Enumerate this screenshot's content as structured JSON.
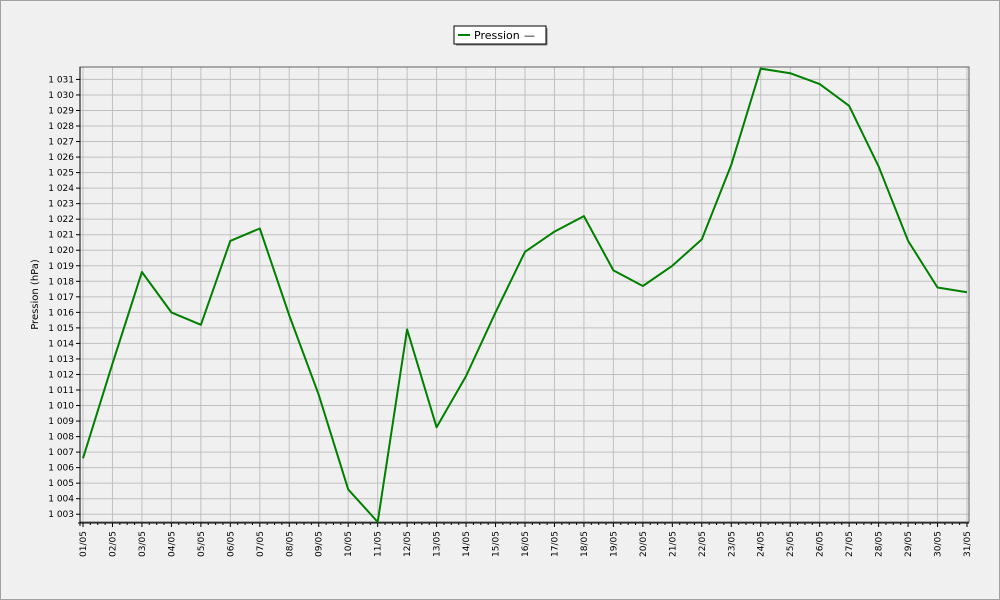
{
  "chart_data": {
    "type": "line",
    "title": "",
    "xlabel": "",
    "ylabel": "Pression (hPa)",
    "ylim": [
      1002.5,
      1031.8
    ],
    "y_ticks": [
      1003,
      1004,
      1005,
      1006,
      1007,
      1008,
      1009,
      1010,
      1011,
      1012,
      1013,
      1014,
      1015,
      1016,
      1017,
      1018,
      1019,
      1020,
      1021,
      1022,
      1023,
      1024,
      1025,
      1026,
      1027,
      1028,
      1029,
      1030,
      1031
    ],
    "y_tick_labels": [
      "1 003",
      "1 004",
      "1 005",
      "1 006",
      "1 007",
      "1 008",
      "1 009",
      "1 010",
      "1 011",
      "1 012",
      "1 013",
      "1 014",
      "1 015",
      "1 016",
      "1 017",
      "1 018",
      "1 019",
      "1 020",
      "1 021",
      "1 022",
      "1 023",
      "1 024",
      "1 025",
      "1 026",
      "1 027",
      "1 028",
      "1 029",
      "1 030",
      "1 031"
    ],
    "categories": [
      "01/05",
      "02/05",
      "03/05",
      "04/05",
      "05/05",
      "06/05",
      "07/05",
      "08/05",
      "09/05",
      "10/05",
      "11/05",
      "12/05",
      "13/05",
      "14/05",
      "15/05",
      "16/05",
      "17/05",
      "18/05",
      "19/05",
      "20/05",
      "21/05",
      "22/05",
      "23/05",
      "24/05",
      "25/05",
      "26/05",
      "27/05",
      "28/05",
      "29/05",
      "30/05",
      "31/05"
    ],
    "grid": true,
    "legend_position": "top-center",
    "series": [
      {
        "name": "Pression",
        "color": "#008000",
        "values": [
          1006.6,
          1012.7,
          1018.6,
          1016.0,
          1015.2,
          1020.6,
          1021.4,
          1015.8,
          1010.7,
          1004.6,
          1002.5,
          1014.9,
          1008.6,
          1011.9,
          1016.0,
          1019.9,
          1021.2,
          1022.2,
          1018.7,
          1017.7,
          1019.0,
          1020.7,
          1025.5,
          1031.7,
          1031.4,
          1030.7,
          1029.3,
          1025.4,
          1020.6,
          1017.6,
          1017.3
        ]
      }
    ]
  },
  "legend": {
    "label": "Pression",
    "suffix": "—"
  }
}
